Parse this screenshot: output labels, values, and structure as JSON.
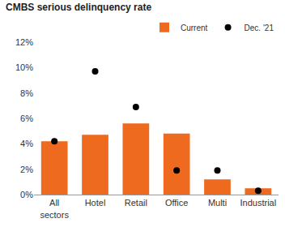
{
  "chart_data": {
    "type": "bar",
    "title": "CMBS serious delinquency rate",
    "categories": [
      "All sectors",
      "Hotel",
      "Retail",
      "Office",
      "Multi",
      "Industrial"
    ],
    "series": [
      {
        "name": "Current",
        "type": "bar",
        "color": "#ee6a1f",
        "values": [
          4.2,
          4.7,
          5.6,
          4.8,
          1.2,
          0.5
        ]
      },
      {
        "name": "Dec. '21",
        "type": "scatter",
        "color": "#000000",
        "marker": "circle",
        "values": [
          4.2,
          9.7,
          6.9,
          1.9,
          1.9,
          0.3
        ]
      }
    ],
    "ylim": [
      0,
      12
    ],
    "yticks": [
      {
        "value": 0,
        "label": "0%"
      },
      {
        "value": 2,
        "label": "2%"
      },
      {
        "value": 4,
        "label": "4%"
      },
      {
        "value": 6,
        "label": "6%"
      },
      {
        "value": 8,
        "label": "8%"
      },
      {
        "value": 10,
        "label": "10%"
      },
      {
        "value": 12,
        "label": "12%"
      }
    ],
    "grid": false,
    "legend": "top right"
  }
}
